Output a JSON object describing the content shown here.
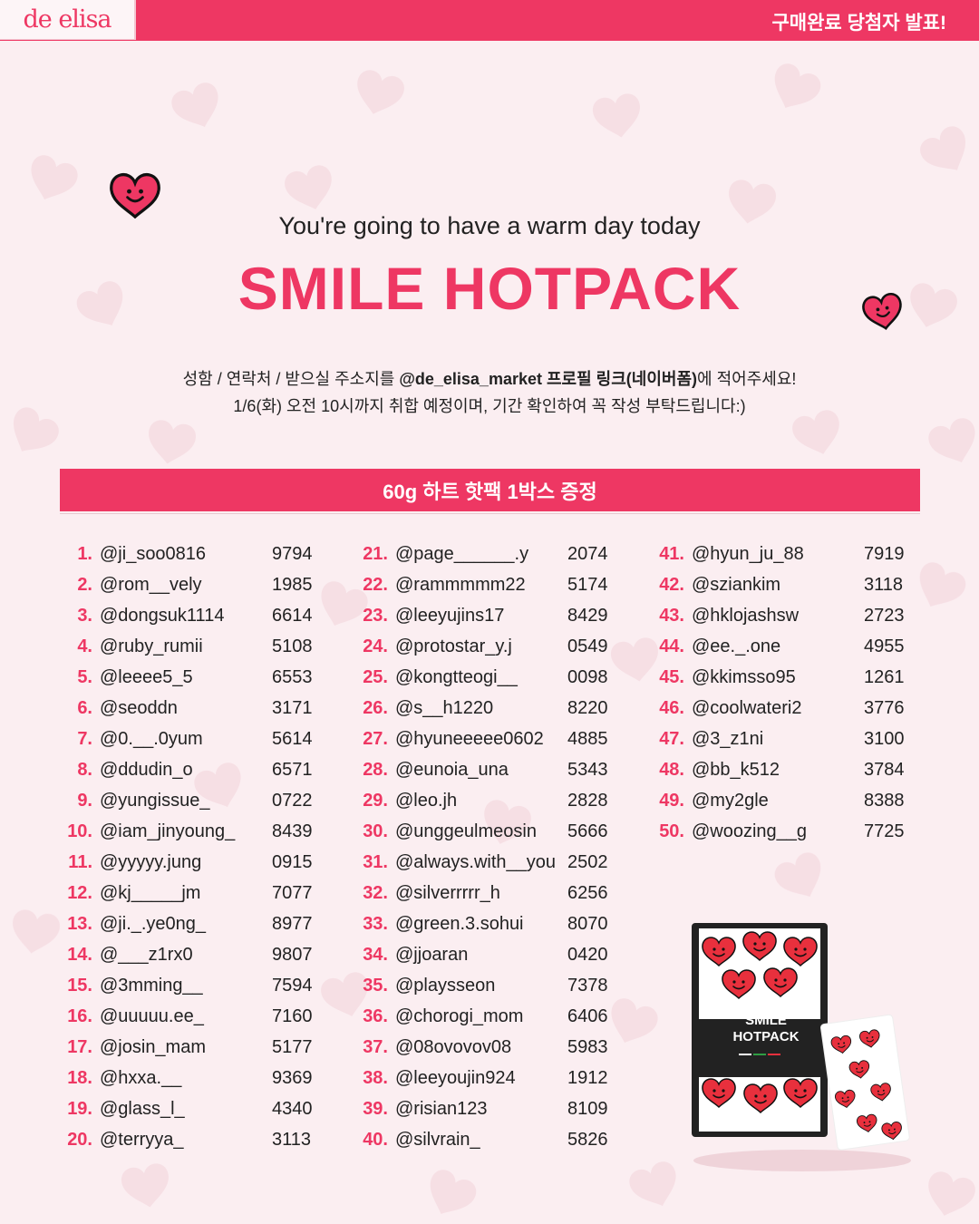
{
  "brand": {
    "logo": "de elisa"
  },
  "header": {
    "announcement": "구매완료 당첨자 발표!"
  },
  "hero": {
    "subtitle": "You're going to have a warm day today",
    "title": "SMILE HOTPACK"
  },
  "notice": {
    "line1_pre": "성함 / 연락처 / 받으실 주소지를 ",
    "line1_bold": "@de_elisa_market 프로필 링크(네이버폼)",
    "line1_post": "에 적어주세요!",
    "line2": "1/6(화) 오전 10시까지 취합 예정이며, 기간 확인하여 꼭 작성 부탁드립니다:)"
  },
  "prize": {
    "label": "60g 하트 핫팩 1박스 증정"
  },
  "product": {
    "line1": "SMILE",
    "line2": "HOTPACK"
  },
  "icons": [
    "smiley-heart-icon"
  ],
  "colors": {
    "accent": "#ee3763",
    "background": "#fbeef1"
  },
  "winners": [
    {
      "num": "1.",
      "user": "@ji_soo0816",
      "code": "9794"
    },
    {
      "num": "2.",
      "user": "@rom__vely",
      "code": "1985"
    },
    {
      "num": "3.",
      "user": "@dongsuk1114",
      "code": "6614"
    },
    {
      "num": "4.",
      "user": "@ruby_rumii",
      "code": "5108"
    },
    {
      "num": "5.",
      "user": "@leeee5_5",
      "code": "6553"
    },
    {
      "num": "6.",
      "user": "@seoddn",
      "code": "3171"
    },
    {
      "num": "7.",
      "user": "@0.__.0yum",
      "code": "5614"
    },
    {
      "num": "8.",
      "user": "@ddudin_o",
      "code": "6571"
    },
    {
      "num": "9.",
      "user": "@yungissue_",
      "code": "0722"
    },
    {
      "num": "10.",
      "user": "@iam_jinyoung_",
      "code": "8439"
    },
    {
      "num": "11.",
      "user": "@yyyyy.jung",
      "code": "0915"
    },
    {
      "num": "12.",
      "user": "@kj_____jm",
      "code": "7077"
    },
    {
      "num": "13.",
      "user": "@ji._.ye0ng_",
      "code": "8977"
    },
    {
      "num": "14.",
      "user": "@___z1rx0",
      "code": "9807"
    },
    {
      "num": "15.",
      "user": "@3mming__",
      "code": "7594"
    },
    {
      "num": "16.",
      "user": "@uuuuu.ee_",
      "code": "7160"
    },
    {
      "num": "17.",
      "user": "@josin_mam",
      "code": "5177"
    },
    {
      "num": "18.",
      "user": "@hxxa.__",
      "code": "9369"
    },
    {
      "num": "19.",
      "user": "@glass_l_",
      "code": "4340"
    },
    {
      "num": "20.",
      "user": "@terryya_",
      "code": "3113"
    },
    {
      "num": "21.",
      "user": "@page______.y",
      "code": "2074"
    },
    {
      "num": "22.",
      "user": "@rammmmm22",
      "code": "5174"
    },
    {
      "num": "23.",
      "user": "@leeyujins17",
      "code": "8429"
    },
    {
      "num": "24.",
      "user": "@protostar_y.j",
      "code": "0549"
    },
    {
      "num": "25.",
      "user": "@kongtteogi__",
      "code": "0098"
    },
    {
      "num": "26.",
      "user": "@s__h1220",
      "code": "8220"
    },
    {
      "num": "27.",
      "user": "@hyuneeeee0602",
      "code": "4885"
    },
    {
      "num": "28.",
      "user": "@eunoia_una",
      "code": "5343"
    },
    {
      "num": "29.",
      "user": "@leo.jh",
      "code": "2828"
    },
    {
      "num": "30.",
      "user": "@unggeulmeosin",
      "code": "5666"
    },
    {
      "num": "31.",
      "user": "@always.with__you",
      "code": "2502"
    },
    {
      "num": "32.",
      "user": "@silverrrrr_h",
      "code": "6256"
    },
    {
      "num": "33.",
      "user": "@green.3.sohui",
      "code": "8070"
    },
    {
      "num": "34.",
      "user": "@jjoaran",
      "code": "0420"
    },
    {
      "num": "35.",
      "user": "@playsseon",
      "code": "7378"
    },
    {
      "num": "36.",
      "user": "@chorogi_mom",
      "code": "6406"
    },
    {
      "num": "37.",
      "user": "@08ovovov08",
      "code": "5983"
    },
    {
      "num": "38.",
      "user": "@leeyoujin924",
      "code": "1912"
    },
    {
      "num": "39.",
      "user": "@risian123",
      "code": "8109"
    },
    {
      "num": "40.",
      "user": "@silvrain_",
      "code": "5826"
    },
    {
      "num": "41.",
      "user": "@hyun_ju_88",
      "code": "7919"
    },
    {
      "num": "42.",
      "user": "@sziankim",
      "code": "3118"
    },
    {
      "num": "43.",
      "user": "@hklojashsw",
      "code": "2723"
    },
    {
      "num": "44.",
      "user": "@ee._.one",
      "code": "4955"
    },
    {
      "num": "45.",
      "user": "@kkimsso95",
      "code": "1261"
    },
    {
      "num": "46.",
      "user": "@coolwateri2",
      "code": "3776"
    },
    {
      "num": "47.",
      "user": "@3_z1ni",
      "code": "3100"
    },
    {
      "num": "48.",
      "user": "@bb_k512",
      "code": "3784"
    },
    {
      "num": "49.",
      "user": "@my2gle",
      "code": "8388"
    },
    {
      "num": "50.",
      "user": "@woozing__g",
      "code": "7725"
    }
  ]
}
